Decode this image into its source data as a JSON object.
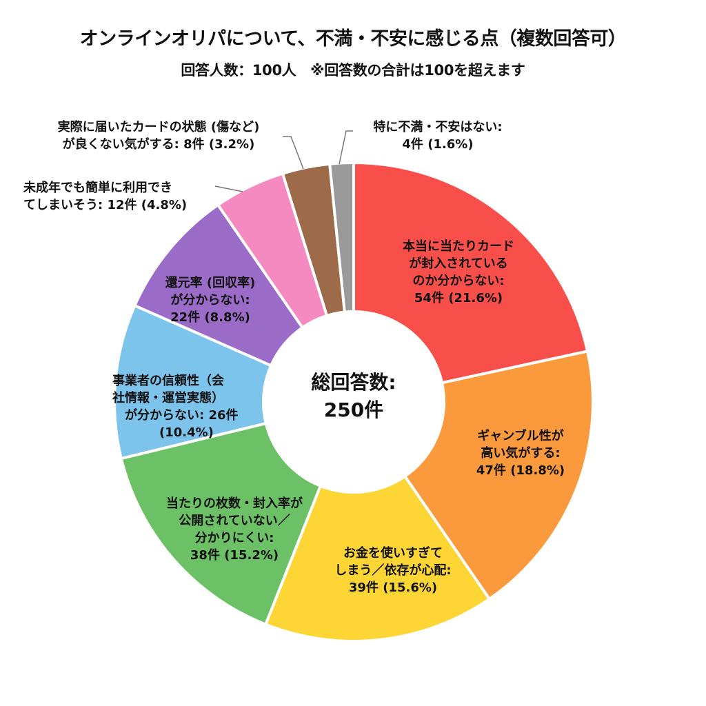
{
  "title": "オンラインオリパについて、不満・不安に感じる点（複数回答可）",
  "subtitle": "回答人数：100人　※回答数の合計は100を超えます",
  "center": {
    "line1": "総回答数:",
    "line2": "250件"
  },
  "labels": {
    "s0": [
      "本当に当たりカード",
      "が封入されている",
      "のか分からない:",
      "54件 (21.6%)"
    ],
    "s1": [
      "ギャンブル性が",
      "高い気がする:",
      "47件 (18.8%)"
    ],
    "s2": [
      "お金を使いすぎて",
      "しまう／依存が心配:",
      "39件 (15.6%)"
    ],
    "s3": [
      "当たりの枚数・封入率が",
      "公開されていない／",
      "分かりにくい:",
      "38件 (15.2%)"
    ],
    "s4": [
      "事業者の信頼性（会",
      "社情報・運営実態）",
      "が分からない: 26件",
      "(10.4%)"
    ],
    "s5": [
      "還元率 (回収率)",
      "が分からない:",
      "22件 (8.8%)"
    ],
    "s6": [
      "未成年でも簡単に利用でき",
      "てしまいそう: 12件 (4.8%)"
    ],
    "s7": [
      "実際に届いたカードの状態 (傷など)",
      "が良くない気がする: 8件 (3.2%)"
    ],
    "s8": [
      "特に不満・不安はない:",
      "4件 (1.6%)"
    ]
  },
  "chart_data": {
    "type": "pie",
    "variant": "donut",
    "title": "オンラインオリパについて、不満・不安に感じる点（複数回答可）",
    "subtitle": "回答人数：100人　※回答数の合計は100を超えます",
    "center_label": "総回答数: 250件",
    "total": 250,
    "categories": [
      "本当に当たりカードが封入されているのか分からない",
      "ギャンブル性が高い気がする",
      "お金を使いすぎてしまう／依存が心配",
      "当たりの枚数・封入率が公開されていない／分かりにくい",
      "事業者の信頼性（会社情報・運営実態）が分からない",
      "還元率 (回収率) が分からない",
      "未成年でも簡単に利用できてしまいそう",
      "実際に届いたカードの状態 (傷など) が良くない気がする",
      "特に不満・不安はない"
    ],
    "values": [
      54,
      47,
      39,
      38,
      26,
      22,
      12,
      8,
      4
    ],
    "percentages": [
      21.6,
      18.8,
      15.6,
      15.2,
      10.4,
      8.8,
      4.8,
      3.2,
      1.6
    ],
    "colors": [
      "#f94f4a",
      "#fb9a3c",
      "#fdd535",
      "#6cc065",
      "#7cc4ec",
      "#9b6bc8",
      "#f58ac0",
      "#9d6a4a",
      "#9a9a9a"
    ],
    "start_angle": "12 o'clock, clockwise",
    "legend": "none (direct labels)"
  }
}
